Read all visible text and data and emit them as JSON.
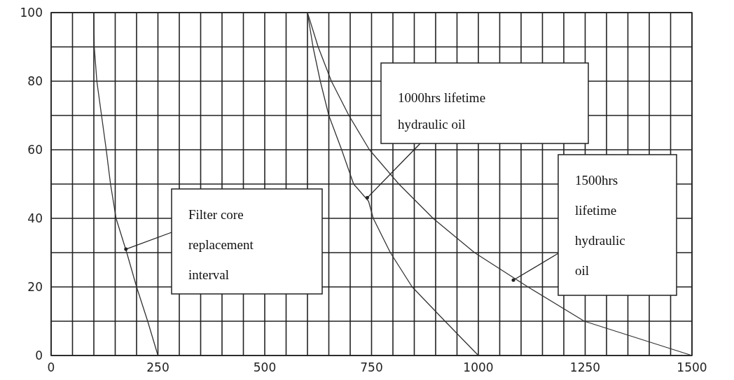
{
  "chart_data": {
    "type": "line",
    "xlim": [
      0,
      1500
    ],
    "ylim": [
      0,
      100
    ],
    "xticks": [
      0,
      250,
      500,
      750,
      1000,
      1250,
      1500
    ],
    "yticks": [
      0,
      20,
      40,
      60,
      80,
      100
    ],
    "grid": true,
    "marker": "none",
    "line_style": "solid",
    "series": [
      {
        "color": "#333333",
        "x": [
          100,
          101,
          107,
          118,
          129,
          139,
          152,
          177,
          200,
          226,
          250
        ],
        "values": [
          100,
          90,
          80,
          70,
          60,
          50,
          40,
          30,
          20,
          10,
          0
        ]
      },
      {
        "color": "#333333",
        "x": [
          600,
          613,
          630,
          650,
          680,
          708,
          743,
          754,
          794,
          845,
          922,
          1000
        ],
        "values": [
          100,
          90,
          80,
          70,
          60,
          50,
          45,
          40,
          30,
          20,
          10,
          0
        ]
      },
      {
        "color": "#333333",
        "x": [
          600,
          625,
          656,
          697,
          745,
          814,
          894,
          991,
          1116,
          1248,
          1500
        ],
        "values": [
          100,
          90,
          80,
          70,
          60,
          50,
          40,
          30,
          20,
          10,
          0
        ]
      }
    ],
    "annotations": [
      {
        "text": "Filter core replacement interval",
        "x": 175,
        "y": 31
      },
      {
        "text": "1000hrs lifetime hydraulic oil",
        "x": 740,
        "y": 46
      },
      {
        "text": "1500hrs lifetime hydraulic oil",
        "x": 1082,
        "y": 22
      }
    ]
  }
}
